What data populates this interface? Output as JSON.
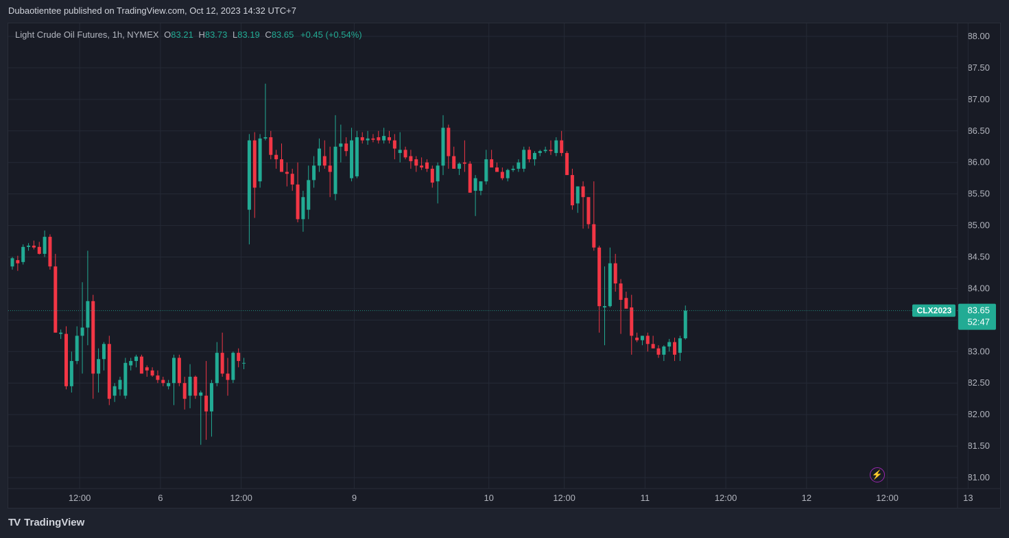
{
  "header": {
    "published": "Dubaotientee published on TradingView.com, Oct 12, 2023 14:32 UTC+7"
  },
  "legend": {
    "symbol": "Light Crude Oil Futures, 1h, NYMEX",
    "o_label": "O",
    "o": "83.21",
    "h_label": "H",
    "h": "83.73",
    "l_label": "L",
    "l": "83.19",
    "c_label": "C",
    "c": "83.65",
    "change": "+0.45 (+0.54%)"
  },
  "price_tag": {
    "ticker": "CLX2023",
    "price": "83.65",
    "countdown": "52:47"
  },
  "footer": {
    "brand": "TradingView",
    "logo_text": "TV"
  },
  "icons": {
    "alert": "lightning-bolt-icon",
    "alert_glyph": "⚡"
  },
  "colors": {
    "up": "#22ab94",
    "down": "#f23645",
    "grid": "#252a36",
    "price_line": "#22ab94"
  },
  "chart_data": {
    "type": "candlestick",
    "title": "Light Crude Oil Futures, 1h, NYMEX",
    "ylim": [
      81.0,
      88.0
    ],
    "y_ticks": [
      "88.00",
      "87.50",
      "87.00",
      "86.50",
      "86.00",
      "85.50",
      "85.00",
      "84.50",
      "84.00",
      "83.50",
      "83.00",
      "82.50",
      "82.00",
      "81.50",
      "81.00"
    ],
    "x_ticks": [
      {
        "label": "12:00",
        "bar": 6
      },
      {
        "label": "6",
        "bar": 21
      },
      {
        "label": "12:00",
        "bar": 36
      },
      {
        "label": "9",
        "bar": 57
      },
      {
        "label": "10",
        "bar": 82
      },
      {
        "label": "12:00",
        "bar": 96
      },
      {
        "label": "11",
        "bar": 111
      },
      {
        "label": "12:00",
        "bar": 126
      },
      {
        "label": "12",
        "bar": 141
      },
      {
        "label": "12:00",
        "bar": 156
      },
      {
        "label": "13",
        "bar": 171
      }
    ],
    "last_price": 83.65,
    "ohlc": [
      [
        0,
        84.35,
        84.5,
        84.3,
        84.48
      ],
      [
        1,
        84.45,
        84.52,
        84.28,
        84.4
      ],
      [
        2,
        84.42,
        84.7,
        84.38,
        84.66
      ],
      [
        3,
        84.66,
        84.72,
        84.6,
        84.68
      ],
      [
        4,
        84.68,
        84.76,
        84.62,
        84.65
      ],
      [
        5,
        84.66,
        84.74,
        84.54,
        84.55
      ],
      [
        6,
        84.55,
        84.92,
        84.5,
        84.82
      ],
      [
        7,
        84.82,
        84.86,
        84.3,
        84.35
      ],
      [
        8,
        84.35,
        84.55,
        83.3,
        83.3
      ],
      [
        9,
        83.28,
        83.35,
        83.2,
        83.3
      ],
      [
        10,
        83.28,
        83.4,
        82.4,
        82.45
      ],
      [
        11,
        82.45,
        83.0,
        82.35,
        82.85
      ],
      [
        12,
        82.85,
        83.4,
        82.8,
        83.25
      ],
      [
        13,
        83.25,
        84.1,
        82.65,
        83.38
      ],
      [
        14,
        83.38,
        84.6,
        83.1,
        83.8
      ],
      [
        15,
        83.8,
        83.9,
        82.25,
        82.65
      ],
      [
        16,
        82.65,
        83.05,
        82.35,
        82.88
      ],
      [
        17,
        82.88,
        83.15,
        82.7,
        83.12
      ],
      [
        18,
        83.12,
        83.25,
        82.15,
        82.25
      ],
      [
        19,
        82.3,
        82.5,
        82.2,
        82.45
      ],
      [
        20,
        82.4,
        82.6,
        82.3,
        82.55
      ],
      [
        21,
        82.3,
        82.9,
        82.25,
        82.82
      ],
      [
        22,
        82.78,
        82.9,
        82.7,
        82.85
      ],
      [
        23,
        82.85,
        82.95,
        82.75,
        82.92
      ],
      [
        24,
        82.92,
        82.95,
        82.65,
        82.65
      ],
      [
        25,
        82.75,
        82.78,
        82.6,
        82.7
      ],
      [
        26,
        82.7,
        82.75,
        82.6,
        82.62
      ],
      [
        27,
        82.62,
        82.7,
        82.5,
        82.55
      ],
      [
        28,
        82.55,
        82.6,
        82.45,
        82.5
      ],
      [
        29,
        82.45,
        82.55,
        82.4,
        82.5
      ],
      [
        30,
        82.5,
        82.95,
        82.15,
        82.9
      ],
      [
        31,
        82.9,
        82.95,
        82.45,
        82.5
      ],
      [
        32,
        82.5,
        82.6,
        82.08,
        82.25
      ],
      [
        33,
        82.3,
        82.8,
        82.1,
        82.6
      ],
      [
        34,
        82.6,
        82.62,
        82.25,
        82.3
      ],
      [
        35,
        82.3,
        82.38,
        81.52,
        82.35
      ],
      [
        36,
        82.3,
        82.85,
        81.6,
        82.05
      ],
      [
        37,
        82.05,
        82.55,
        81.65,
        82.5
      ],
      [
        38,
        82.5,
        83.15,
        82.45,
        82.98
      ],
      [
        39,
        82.98,
        83.3,
        82.6,
        82.65
      ],
      [
        40,
        82.65,
        82.9,
        82.3,
        82.55
      ],
      [
        41,
        82.55,
        83.0,
        82.5,
        82.98
      ],
      [
        42,
        82.98,
        83.05,
        82.75,
        82.85
      ],
      [
        43,
        82.82,
        82.9,
        82.72,
        82.82
      ],
      [
        44,
        85.25,
        86.45,
        84.7,
        86.35
      ],
      [
        45,
        86.35,
        86.48,
        85.12,
        85.6
      ],
      [
        46,
        85.7,
        86.45,
        85.6,
        86.38
      ],
      [
        47,
        86.38,
        87.25,
        86.35,
        86.4
      ],
      [
        48,
        86.4,
        86.5,
        86.05,
        86.12
      ],
      [
        49,
        86.12,
        86.2,
        85.9,
        86.05
      ],
      [
        50,
        86.05,
        86.3,
        85.85,
        85.85
      ],
      [
        51,
        85.85,
        86.0,
        85.62,
        85.82
      ],
      [
        52,
        85.82,
        85.9,
        85.55,
        85.65
      ],
      [
        53,
        85.65,
        86.0,
        85.05,
        85.1
      ],
      [
        54,
        85.1,
        85.55,
        84.9,
        85.45
      ],
      [
        55,
        85.25,
        85.95,
        85.1,
        85.72
      ],
      [
        56,
        85.72,
        86.1,
        85.6,
        85.95
      ],
      [
        57,
        85.95,
        86.38,
        85.85,
        86.22
      ],
      [
        58,
        86.1,
        86.35,
        85.9,
        85.95
      ],
      [
        59,
        85.95,
        86.25,
        85.45,
        85.85
      ],
      [
        60,
        85.5,
        86.75,
        85.4,
        86.25
      ],
      [
        61,
        86.25,
        86.6,
        86.0,
        86.3
      ],
      [
        62,
        86.3,
        86.4,
        86.1,
        86.18
      ],
      [
        63,
        85.75,
        86.55,
        85.7,
        86.35
      ],
      [
        64,
        85.78,
        86.5,
        85.75,
        86.4
      ],
      [
        65,
        86.4,
        86.48,
        86.3,
        86.35
      ],
      [
        66,
        86.35,
        86.5,
        86.28,
        86.38
      ],
      [
        67,
        86.38,
        86.45,
        86.32,
        86.36
      ],
      [
        68,
        86.4,
        86.5,
        86.3,
        86.35
      ],
      [
        69,
        86.35,
        86.55,
        86.3,
        86.42
      ],
      [
        70,
        86.4,
        86.5,
        86.3,
        86.35
      ],
      [
        71,
        86.35,
        86.45,
        86.05,
        86.22
      ],
      [
        72,
        86.15,
        86.48,
        86.0,
        86.2
      ],
      [
        73,
        86.2,
        86.25,
        86.05,
        86.08
      ],
      [
        74,
        86.1,
        86.2,
        85.9,
        86.02
      ],
      [
        75,
        86.05,
        86.1,
        85.85,
        85.95
      ],
      [
        76,
        85.95,
        86.08,
        85.88,
        85.92
      ],
      [
        77,
        86.0,
        86.05,
        85.85,
        85.9
      ],
      [
        78,
        85.9,
        85.95,
        85.6,
        85.68
      ],
      [
        79,
        85.7,
        86.0,
        85.35,
        85.95
      ],
      [
        80,
        85.95,
        86.75,
        85.8,
        86.55
      ],
      [
        81,
        86.55,
        86.6,
        85.9,
        86.1
      ],
      [
        82,
        86.1,
        86.25,
        85.9,
        85.9
      ],
      [
        83,
        85.9,
        86.0,
        85.8,
        85.98
      ],
      [
        84,
        86.0,
        86.35,
        85.85,
        85.98
      ],
      [
        85,
        85.98,
        86.02,
        85.52,
        85.52
      ],
      [
        86,
        85.55,
        85.8,
        85.15,
        85.75
      ],
      [
        87,
        85.55,
        85.7,
        85.48,
        85.7
      ],
      [
        88,
        85.7,
        86.2,
        85.65,
        86.05
      ],
      [
        89,
        86.05,
        86.2,
        85.95,
        85.92
      ],
      [
        90,
        85.92,
        86.0,
        85.85,
        85.85
      ],
      [
        91,
        85.85,
        85.92,
        85.72,
        85.75
      ],
      [
        92,
        85.75,
        85.9,
        85.7,
        85.88
      ],
      [
        93,
        85.88,
        85.95,
        85.85,
        85.9
      ],
      [
        94,
        85.9,
        86.05,
        85.85,
        86.0
      ],
      [
        95,
        85.9,
        86.25,
        85.85,
        86.2
      ],
      [
        96,
        86.2,
        86.25,
        86.0,
        86.05
      ],
      [
        97,
        86.05,
        86.18,
        85.95,
        86.15
      ],
      [
        98,
        86.15,
        86.2,
        86.1,
        86.18
      ],
      [
        99,
        86.18,
        86.25,
        86.15,
        86.2
      ],
      [
        100,
        86.2,
        86.35,
        86.12,
        86.18
      ],
      [
        101,
        86.15,
        86.4,
        86.1,
        86.35
      ],
      [
        102,
        86.35,
        86.5,
        86.1,
        86.15
      ],
      [
        103,
        86.15,
        86.18,
        85.8,
        85.8
      ],
      [
        104,
        85.8,
        85.9,
        85.25,
        85.32
      ],
      [
        105,
        85.35,
        85.62,
        85.2,
        85.62
      ],
      [
        106,
        85.62,
        85.7,
        84.95,
        85.45
      ],
      [
        107,
        85.45,
        85.45,
        84.95,
        85.02
      ],
      [
        108,
        85.02,
        85.7,
        84.6,
        84.65
      ],
      [
        109,
        84.65,
        84.68,
        83.3,
        83.72
      ],
      [
        110,
        83.7,
        84.35,
        83.1,
        83.72
      ],
      [
        111,
        83.72,
        84.65,
        83.7,
        84.4
      ],
      [
        112,
        84.4,
        84.55,
        83.95,
        84.08
      ],
      [
        113,
        84.08,
        84.15,
        83.28,
        83.82
      ],
      [
        114,
        83.85,
        83.95,
        83.7,
        83.68
      ],
      [
        115,
        83.7,
        83.9,
        82.95,
        83.25
      ],
      [
        116,
        83.22,
        83.3,
        83.15,
        83.18
      ],
      [
        117,
        83.18,
        83.25,
        83.1,
        83.25
      ],
      [
        118,
        83.25,
        83.3,
        83.0,
        83.12
      ],
      [
        119,
        83.12,
        83.25,
        83.05,
        83.05
      ],
      [
        120,
        83.05,
        83.1,
        82.9,
        82.95
      ],
      [
        121,
        82.95,
        83.1,
        82.85,
        83.08
      ],
      [
        122,
        83.08,
        83.2,
        83.0,
        83.15
      ],
      [
        123,
        83.15,
        83.22,
        82.85,
        82.95
      ],
      [
        124,
        82.98,
        83.25,
        82.85,
        83.21
      ],
      [
        125,
        83.21,
        83.73,
        83.19,
        83.65
      ]
    ]
  }
}
